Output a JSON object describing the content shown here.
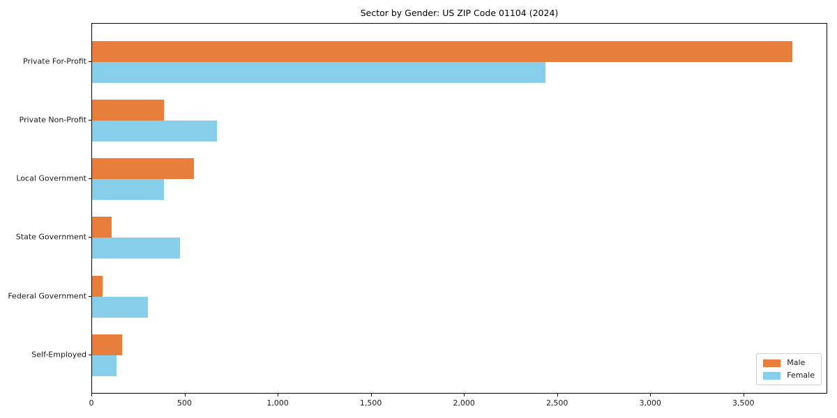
{
  "chart_data": {
    "type": "bar",
    "orientation": "horizontal",
    "title": "Sector by Gender: US ZIP Code 01104 (2024)",
    "categories": [
      "Private For-Profit",
      "Private Non-Profit",
      "Local Government",
      "State Government",
      "Federal Government",
      "Self-Employed"
    ],
    "series": [
      {
        "name": "Male",
        "color": "#e87e3b",
        "values": [
          3760,
          385,
          545,
          105,
          55,
          160
        ]
      },
      {
        "name": "Female",
        "color": "#87ceeb",
        "values": [
          2435,
          670,
          385,
          470,
          300,
          130
        ]
      }
    ],
    "xlabel": "",
    "ylabel": "",
    "xlim": [
      0,
      3950
    ],
    "xticks": {
      "values": [
        0,
        500,
        1000,
        1500,
        2000,
        2500,
        3000,
        3500
      ],
      "labels": [
        "0",
        "500",
        "1,000",
        "1,500",
        "2,000",
        "2,500",
        "3,000",
        "3,500"
      ]
    },
    "grid": false,
    "legend": {
      "position": "lower right",
      "entries": [
        "Male",
        "Female"
      ]
    }
  },
  "colors": {
    "background": "#ffffff",
    "spine": "#000000",
    "text": "#1a1a1a",
    "legend_border": "#cccccc"
  }
}
